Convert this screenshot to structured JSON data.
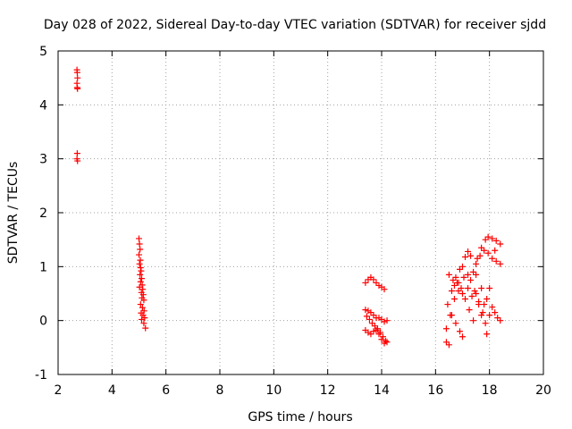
{
  "chart_data": {
    "type": "scatter",
    "title": "Day 028 of 2022, Sidereal Day-to-day VTEC variation (SDTVAR) for receiver sjdd",
    "xlabel": "GPS time / hours",
    "ylabel": "SDTVAR / TECUs",
    "xlim": [
      2,
      20
    ],
    "ylim": [
      -1,
      5
    ],
    "x_ticks": [
      2,
      4,
      6,
      8,
      10,
      12,
      14,
      16,
      18,
      20
    ],
    "y_ticks": [
      -1,
      0,
      1,
      2,
      3,
      4,
      5
    ],
    "x_tick_labels": [
      "2",
      "4",
      "6",
      "8",
      "10",
      "12",
      "14",
      "16",
      "18",
      "20"
    ],
    "y_tick_labels": [
      "-1",
      "0",
      "1",
      "2",
      "3",
      "4",
      "5"
    ],
    "grid": true,
    "marker": "+",
    "color": "#ff0000",
    "series": [
      {
        "name": "SDTVAR",
        "points": [
          [
            2.7,
            4.65
          ],
          [
            2.71,
            4.6
          ],
          [
            2.72,
            4.5
          ],
          [
            2.7,
            4.4
          ],
          [
            2.71,
            4.32
          ],
          [
            2.72,
            4.3
          ],
          [
            2.71,
            3.1
          ],
          [
            2.7,
            3.0
          ],
          [
            2.72,
            2.96
          ],
          [
            5.0,
            1.52
          ],
          [
            5.02,
            1.42
          ],
          [
            5.04,
            1.32
          ],
          [
            5.0,
            1.22
          ],
          [
            5.05,
            1.12
          ],
          [
            5.02,
            1.05
          ],
          [
            5.06,
            0.98
          ],
          [
            5.08,
            0.92
          ],
          [
            5.04,
            0.85
          ],
          [
            5.1,
            0.78
          ],
          [
            5.06,
            0.72
          ],
          [
            5.12,
            0.66
          ],
          [
            5.02,
            0.62
          ],
          [
            5.14,
            0.58
          ],
          [
            5.09,
            0.52
          ],
          [
            5.16,
            0.48
          ],
          [
            5.11,
            0.42
          ],
          [
            5.18,
            0.38
          ],
          [
            5.06,
            0.3
          ],
          [
            5.13,
            0.24
          ],
          [
            5.19,
            0.18
          ],
          [
            5.08,
            0.14
          ],
          [
            5.15,
            0.1
          ],
          [
            5.21,
            0.05
          ],
          [
            5.1,
            0.02
          ],
          [
            5.18,
            -0.05
          ],
          [
            5.24,
            -0.14
          ],
          [
            13.4,
            0.7
          ],
          [
            13.5,
            0.76
          ],
          [
            13.6,
            0.8
          ],
          [
            13.7,
            0.76
          ],
          [
            13.8,
            0.7
          ],
          [
            13.9,
            0.65
          ],
          [
            14.0,
            0.62
          ],
          [
            14.1,
            0.58
          ],
          [
            13.4,
            0.2
          ],
          [
            13.5,
            0.18
          ],
          [
            13.6,
            0.15
          ],
          [
            13.7,
            0.1
          ],
          [
            13.8,
            0.05
          ],
          [
            13.9,
            0.05
          ],
          [
            14.0,
            0.02
          ],
          [
            14.1,
            -0.02
          ],
          [
            14.2,
            0.0
          ],
          [
            13.45,
            0.08
          ],
          [
            13.55,
            0.02
          ],
          [
            13.65,
            -0.05
          ],
          [
            13.75,
            -0.1
          ],
          [
            13.85,
            -0.15
          ],
          [
            13.95,
            -0.22
          ],
          [
            14.05,
            -0.3
          ],
          [
            14.15,
            -0.38
          ],
          [
            13.4,
            -0.18
          ],
          [
            13.5,
            -0.22
          ],
          [
            13.6,
            -0.25
          ],
          [
            13.7,
            -0.2
          ],
          [
            13.8,
            -0.18
          ],
          [
            13.9,
            -0.25
          ],
          [
            14.0,
            -0.35
          ],
          [
            14.1,
            -0.42
          ],
          [
            14.2,
            -0.4
          ],
          [
            16.4,
            -0.4
          ],
          [
            16.5,
            -0.45
          ],
          [
            16.4,
            -0.15
          ],
          [
            16.55,
            0.1
          ],
          [
            16.7,
            0.4
          ],
          [
            16.85,
            0.7
          ],
          [
            17.0,
            1.0
          ],
          [
            17.1,
            1.18
          ],
          [
            17.2,
            1.28
          ],
          [
            17.3,
            1.2
          ],
          [
            16.45,
            0.3
          ],
          [
            16.6,
            0.55
          ],
          [
            16.75,
            0.8
          ],
          [
            16.9,
            0.95
          ],
          [
            17.05,
            0.8
          ],
          [
            17.2,
            0.6
          ],
          [
            17.35,
            0.45
          ],
          [
            17.5,
            0.5
          ],
          [
            17.7,
            0.6
          ],
          [
            17.9,
            0.4
          ],
          [
            16.5,
            0.85
          ],
          [
            16.65,
            0.75
          ],
          [
            16.8,
            0.7
          ],
          [
            16.95,
            0.6
          ],
          [
            17.1,
            0.4
          ],
          [
            17.25,
            0.2
          ],
          [
            17.4,
            0.0
          ],
          [
            16.6,
            0.1
          ],
          [
            16.75,
            -0.05
          ],
          [
            16.9,
            -0.2
          ],
          [
            17.0,
            -0.3
          ],
          [
            17.4,
            0.9
          ],
          [
            17.55,
            1.15
          ],
          [
            17.7,
            1.35
          ],
          [
            17.85,
            1.5
          ],
          [
            17.95,
            1.55
          ],
          [
            18.1,
            1.52
          ],
          [
            18.25,
            1.48
          ],
          [
            18.4,
            1.42
          ],
          [
            17.5,
            1.05
          ],
          [
            17.65,
            1.2
          ],
          [
            17.8,
            1.3
          ],
          [
            17.95,
            1.25
          ],
          [
            18.1,
            1.15
          ],
          [
            18.25,
            1.1
          ],
          [
            18.4,
            1.05
          ],
          [
            17.3,
            0.75
          ],
          [
            17.45,
            0.55
          ],
          [
            17.6,
            0.35
          ],
          [
            17.75,
            0.15
          ],
          [
            17.85,
            -0.05
          ],
          [
            17.9,
            -0.25
          ],
          [
            18.0,
            0.1
          ],
          [
            18.1,
            0.25
          ],
          [
            18.2,
            0.15
          ],
          [
            18.3,
            0.05
          ],
          [
            18.4,
            0.0
          ],
          [
            16.7,
            0.65
          ],
          [
            16.85,
            0.55
          ],
          [
            17.0,
            0.5
          ],
          [
            17.2,
            0.85
          ],
          [
            17.5,
            0.85
          ],
          [
            17.6,
            0.3
          ],
          [
            17.7,
            0.1
          ],
          [
            17.8,
            0.3
          ],
          [
            18.0,
            0.6
          ],
          [
            18.2,
            1.3
          ]
        ]
      }
    ]
  }
}
